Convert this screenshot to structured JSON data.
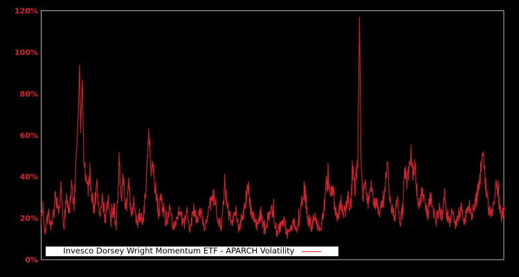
{
  "chart_data": {
    "type": "line",
    "title": "",
    "xlabel": "",
    "ylabel": "",
    "ylim": [
      0,
      120
    ],
    "grid": false,
    "x_axis_labels_visible": false,
    "legend": {
      "label": "Invesco Dorsey Wright Momentum ETF - APARCH Volatility",
      "position": "inside-bottom-left",
      "background": "#ffffff",
      "text_color": "#000000"
    },
    "y_ticks": [
      {
        "label": "0%",
        "value": 0
      },
      {
        "label": "20%",
        "value": 20
      },
      {
        "label": "40%",
        "value": 40
      },
      {
        "label": "60%",
        "value": 60
      },
      {
        "label": "80%",
        "value": 80
      },
      {
        "label": "100%",
        "value": 100
      },
      {
        "label": "120%",
        "value": 120
      }
    ],
    "colors": {
      "line": "#d9212e",
      "tick_label": "#d9212e",
      "plot_border": "#bdbdbd",
      "background": "#000000"
    },
    "series": [
      {
        "name": "Invesco Dorsey Wright Momentum ETF - APARCH Volatility",
        "unit": "percent",
        "description": "Daily APARCH volatility estimate; envelope keypoints sampled from plot as [x_plot_px_0_to_670, value_pct]",
        "keypoints": [
          [
            0,
            18
          ],
          [
            3,
            26
          ],
          [
            6,
            14
          ],
          [
            11,
            22
          ],
          [
            16,
            15
          ],
          [
            21,
            30
          ],
          [
            26,
            20
          ],
          [
            29,
            33
          ],
          [
            33,
            16
          ],
          [
            37,
            30
          ],
          [
            41,
            22
          ],
          [
            45,
            35
          ],
          [
            48,
            25
          ],
          [
            51,
            45
          ],
          [
            54,
            70
          ],
          [
            56,
            93
          ],
          [
            57.5,
            62
          ],
          [
            60,
            87
          ],
          [
            62,
            50
          ],
          [
            65,
            40
          ],
          [
            68,
            34
          ],
          [
            71,
            42
          ],
          [
            74,
            30
          ],
          [
            77,
            25
          ],
          [
            81,
            35
          ],
          [
            85,
            22
          ],
          [
            89,
            28
          ],
          [
            93,
            20
          ],
          [
            97,
            30
          ],
          [
            101,
            17
          ],
          [
            105,
            25
          ],
          [
            109,
            15
          ],
          [
            113,
            48
          ],
          [
            116,
            30
          ],
          [
            119,
            38
          ],
          [
            123,
            25
          ],
          [
            127,
            35
          ],
          [
            131,
            20
          ],
          [
            135,
            28
          ],
          [
            139,
            16
          ],
          [
            143,
            22
          ],
          [
            147,
            18
          ],
          [
            151,
            30
          ],
          [
            156,
            61
          ],
          [
            159,
            44
          ],
          [
            163,
            42
          ],
          [
            167,
            30
          ],
          [
            171,
            22
          ],
          [
            173,
            30
          ],
          [
            176,
            26
          ],
          [
            181,
            18
          ],
          [
            186,
            24
          ],
          [
            191,
            15
          ],
          [
            196,
            20
          ],
          [
            201,
            25
          ],
          [
            206,
            16
          ],
          [
            211,
            22
          ],
          [
            216,
            14
          ],
          [
            221,
            26
          ],
          [
            226,
            18
          ],
          [
            231,
            24
          ],
          [
            236,
            15
          ],
          [
            241,
            20
          ],
          [
            246,
            28
          ],
          [
            251,
            30
          ],
          [
            256,
            20
          ],
          [
            261,
            16
          ],
          [
            266,
            35
          ],
          [
            271,
            22
          ],
          [
            276,
            18
          ],
          [
            281,
            25
          ],
          [
            286,
            15
          ],
          [
            291,
            20
          ],
          [
            296,
            28
          ],
          [
            299,
            36
          ],
          [
            303,
            25
          ],
          [
            308,
            20
          ],
          [
            313,
            16
          ],
          [
            318,
            22
          ],
          [
            323,
            14
          ],
          [
            328,
            18
          ],
          [
            333,
            25
          ],
          [
            336,
            23
          ],
          [
            341,
            13
          ],
          [
            346,
            16
          ],
          [
            351,
            20
          ],
          [
            356,
            12
          ],
          [
            361,
            15
          ],
          [
            366,
            18
          ],
          [
            371,
            14
          ],
          [
            376,
            25
          ],
          [
            381,
            34
          ],
          [
            386,
            20
          ],
          [
            391,
            16
          ],
          [
            396,
            22
          ],
          [
            401,
            14
          ],
          [
            406,
            18
          ],
          [
            411,
            30
          ],
          [
            414,
            38
          ],
          [
            418,
            30
          ],
          [
            421,
            36
          ],
          [
            425,
            24
          ],
          [
            429,
            20
          ],
          [
            434,
            28
          ],
          [
            439,
            22
          ],
          [
            444,
            30
          ],
          [
            448,
            25
          ],
          [
            451,
            45
          ],
          [
            454,
            35
          ],
          [
            458,
            48
          ],
          [
            460.5,
            117.5
          ],
          [
            463,
            40
          ],
          [
            466,
            30
          ],
          [
            469,
            38
          ],
          [
            473,
            28
          ],
          [
            477,
            35
          ],
          [
            481,
            25
          ],
          [
            485,
            30
          ],
          [
            489,
            20
          ],
          [
            493,
            26
          ],
          [
            497,
            33
          ],
          [
            501,
            46
          ],
          [
            504,
            30
          ],
          [
            507,
            25
          ],
          [
            511,
            20
          ],
          [
            515,
            28
          ],
          [
            519,
            18
          ],
          [
            523,
            24
          ],
          [
            526,
            42
          ],
          [
            530,
            38
          ],
          [
            535,
            52
          ],
          [
            538,
            40
          ],
          [
            541,
            46
          ],
          [
            544,
            30
          ],
          [
            547,
            25
          ],
          [
            551,
            35
          ],
          [
            555,
            28
          ],
          [
            559,
            22
          ],
          [
            563,
            30
          ],
          [
            567,
            24
          ],
          [
            571,
            18
          ],
          [
            575,
            25
          ],
          [
            579,
            20
          ],
          [
            583,
            28
          ],
          [
            587,
            22
          ],
          [
            591,
            18
          ],
          [
            595,
            24
          ],
          [
            599,
            16
          ],
          [
            603,
            20
          ],
          [
            607,
            26
          ],
          [
            611,
            18
          ],
          [
            615,
            22
          ],
          [
            619,
            28
          ],
          [
            623,
            20
          ],
          [
            627,
            25
          ],
          [
            631,
            32
          ],
          [
            635,
            40
          ],
          [
            639,
            54
          ],
          [
            643,
            35
          ],
          [
            647,
            25
          ],
          [
            651,
            20
          ],
          [
            655,
            28
          ],
          [
            659,
            36
          ],
          [
            663,
            25
          ],
          [
            667,
            20
          ],
          [
            670,
            26
          ]
        ]
      }
    ]
  }
}
